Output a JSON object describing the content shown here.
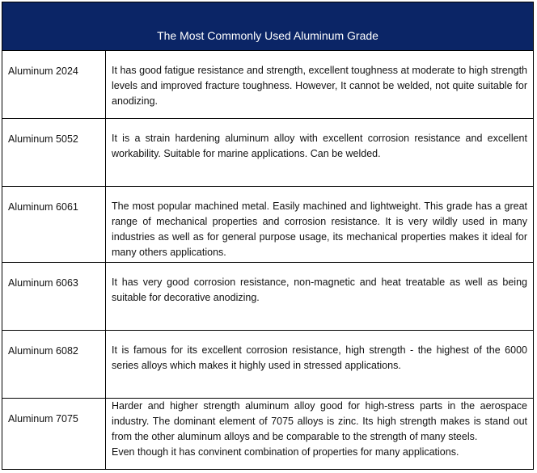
{
  "title": "The Most Commonly Used Aluminum Grade",
  "rows": [
    {
      "grade": "Aluminum 2024",
      "description": "It has good fatigue resistance and strength, excellent toughness at moderate to high strength levels and improved fracture toughness. However, It cannot be welded, not quite suitable for anodizing."
    },
    {
      "grade": "Aluminum 5052",
      "description": "It is a strain hardening aluminum alloy with excellent corrosion resistance and excellent workability. Suitable for marine applications. Can be welded."
    },
    {
      "grade": "Aluminum 6061",
      "description": "The most popular machined metal. Easily machined and lightweight. This grade has a great range of mechanical properties and corrosion resistance. It is very wildly used in many industries as well as for general purpose usage, its mechanical properties makes it ideal for many others applications."
    },
    {
      "grade": "Aluminum 6063",
      "description": "It has very good corrosion resistance, non-magnetic and heat treatable as well as being suitable for decorative anodizing."
    },
    {
      "grade": "Aluminum 6082",
      "description": "It is famous for its excellent corrosion resistance, high strength - the highest of the 6000 series alloys which makes it highly used in stressed applications."
    },
    {
      "grade": "Aluminum 7075",
      "description": "Harder and higher strength aluminum alloy good for high-stress parts in the aerospace industry. The dominant element of 7075 alloys is zinc. Its high strength makes is stand out from the other aluminum alloys and be comparable to the strength of many steels.",
      "note": "Even though it has convinent combination of properties for many applications."
    }
  ]
}
